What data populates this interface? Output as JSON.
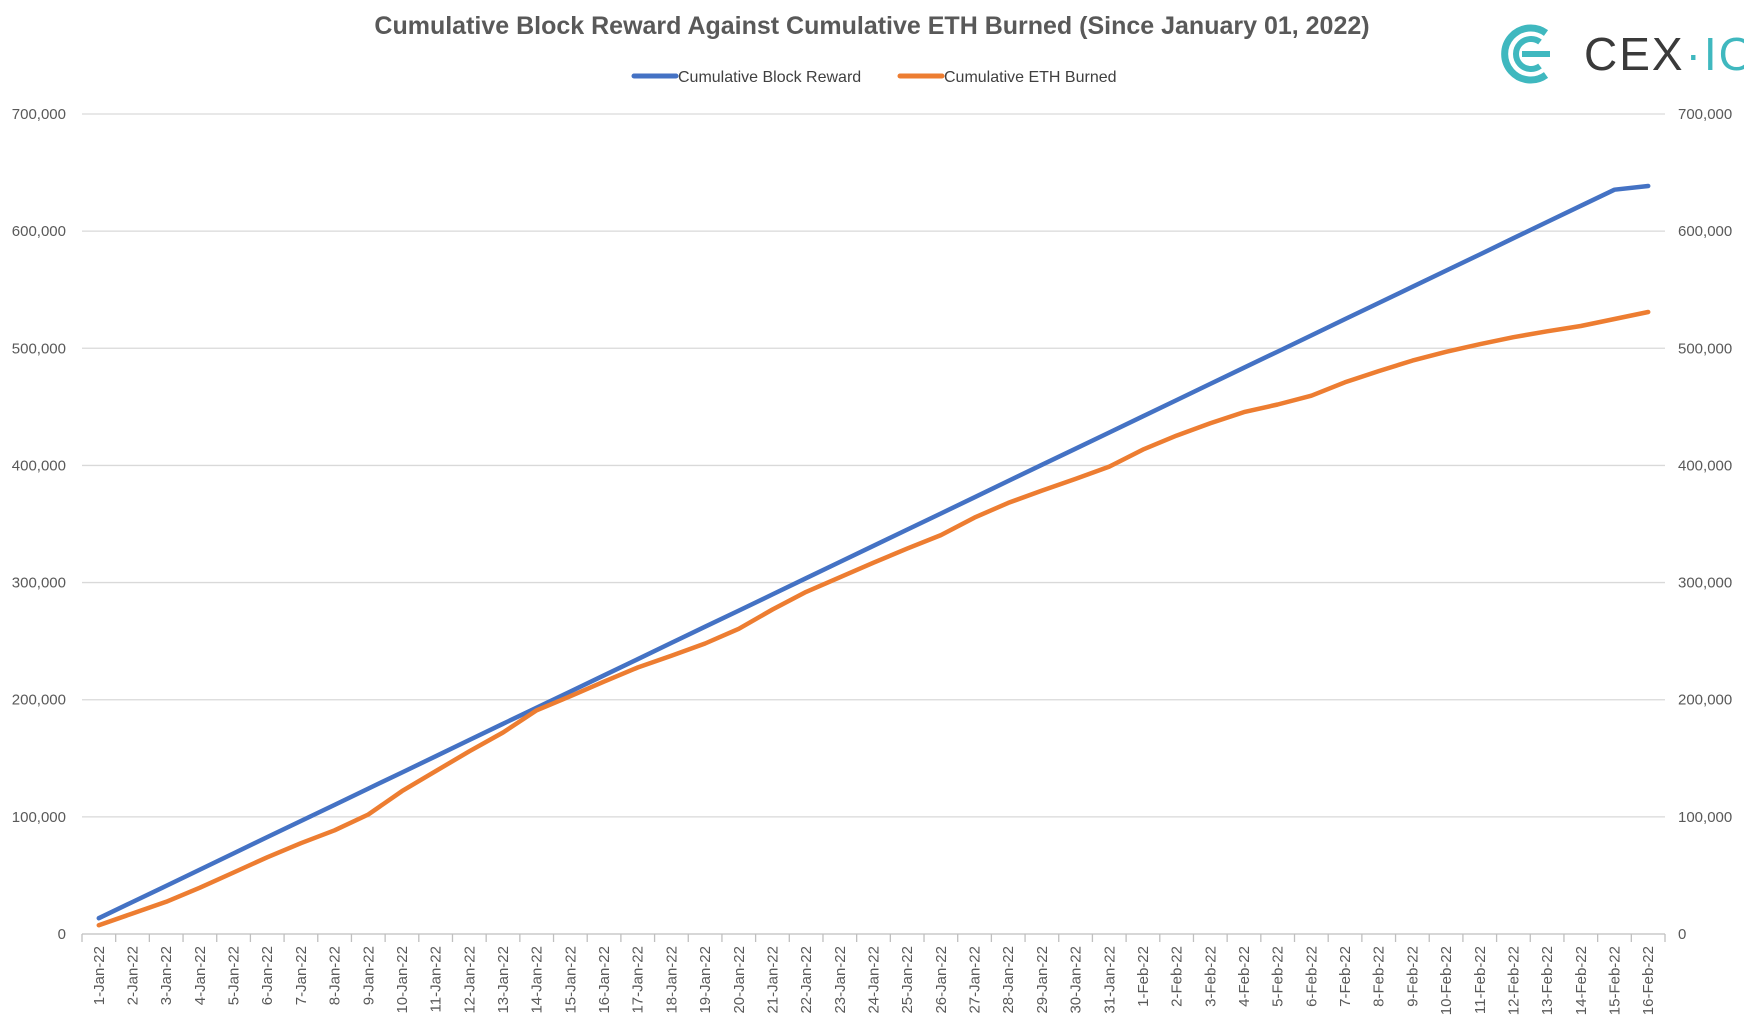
{
  "chart_data": {
    "type": "line",
    "title": "Cumulative Block Reward Against Cumulative ETH Burned (Since January 01, 2022)",
    "xlabel": "",
    "ylabel": "",
    "ylim": [
      0,
      700000
    ],
    "y_ticks": [
      0,
      100000,
      200000,
      300000,
      400000,
      500000,
      600000,
      700000
    ],
    "y_tick_labels": [
      "0",
      "100,000",
      "200,000",
      "300,000",
      "400,000",
      "500,000",
      "600,000",
      "700,000"
    ],
    "secondary_y_axis": true,
    "grid": true,
    "legend_position": "top-center",
    "categories": [
      "1-Jan-22",
      "2-Jan-22",
      "3-Jan-22",
      "4-Jan-22",
      "5-Jan-22",
      "6-Jan-22",
      "7-Jan-22",
      "8-Jan-22",
      "9-Jan-22",
      "10-Jan-22",
      "11-Jan-22",
      "12-Jan-22",
      "13-Jan-22",
      "14-Jan-22",
      "15-Jan-22",
      "16-Jan-22",
      "17-Jan-22",
      "18-Jan-22",
      "19-Jan-22",
      "20-Jan-22",
      "21-Jan-22",
      "22-Jan-22",
      "23-Jan-22",
      "24-Jan-22",
      "25-Jan-22",
      "26-Jan-22",
      "27-Jan-22",
      "28-Jan-22",
      "29-Jan-22",
      "30-Jan-22",
      "31-Jan-22",
      "1-Feb-22",
      "2-Feb-22",
      "3-Feb-22",
      "4-Feb-22",
      "5-Feb-22",
      "6-Feb-22",
      "7-Feb-22",
      "8-Feb-22",
      "9-Feb-22",
      "10-Feb-22",
      "11-Feb-22",
      "12-Feb-22",
      "13-Feb-22",
      "14-Feb-22",
      "15-Feb-22",
      "16-Feb-22"
    ],
    "series": [
      {
        "name": "Cumulative Block Reward",
        "color": "#4472c4",
        "values": [
          13500,
          27300,
          41100,
          55000,
          68800,
          82700,
          96500,
          110200,
          124100,
          137900,
          151700,
          165600,
          179400,
          193200,
          207000,
          220800,
          234600,
          248500,
          262300,
          276100,
          289900,
          303700,
          317600,
          331400,
          345200,
          359000,
          372800,
          386700,
          400500,
          414300,
          428100,
          441900,
          455800,
          469600,
          483400,
          497200,
          511000,
          524900,
          538700,
          552500,
          566300,
          580100,
          594000,
          607800,
          621600,
          635400,
          638500
        ]
      },
      {
        "name": "Cumulative ETH Burned",
        "color": "#ed7d31",
        "values": [
          7500,
          17500,
          27500,
          39500,
          52500,
          65500,
          77500,
          88500,
          102000,
          122000,
          139000,
          156000,
          172000,
          191000,
          203000,
          215500,
          227500,
          237500,
          248000,
          260500,
          277000,
          292000,
          304500,
          317000,
          329000,
          340500,
          355500,
          368000,
          378500,
          388500,
          399000,
          413500,
          425500,
          436000,
          445500,
          452000,
          459500,
          471000,
          480500,
          489500,
          497000,
          503500,
          509500,
          514500,
          519000,
          525000,
          531000
        ]
      }
    ]
  },
  "logo": {
    "text_main": "CEX",
    "text_dot": "·",
    "text_io": "IO"
  }
}
